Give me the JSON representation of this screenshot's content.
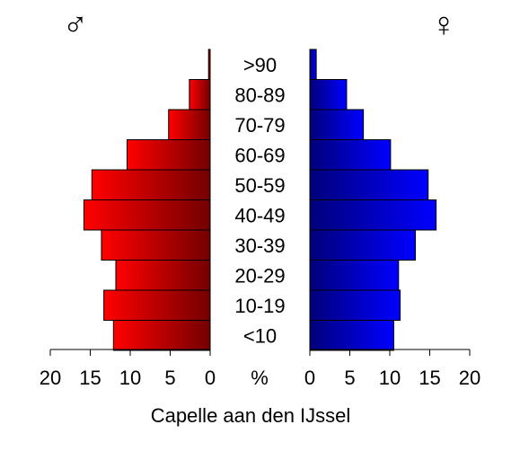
{
  "chart_data": {
    "type": "bar",
    "subtype": "population-pyramid",
    "title": "Capelle aan den IJssel",
    "center_unit_label": "%",
    "male_symbol": "♂",
    "female_symbol": "♀",
    "categories": [
      ">90",
      "80-89",
      "70-79",
      "60-69",
      "50-59",
      "40-49",
      "30-39",
      "20-29",
      "10-19",
      "<10"
    ],
    "series": [
      {
        "side": "male",
        "values": [
          0.2,
          2.6,
          5.2,
          10.4,
          14.8,
          15.8,
          13.6,
          11.8,
          13.3,
          12.1
        ]
      },
      {
        "side": "female",
        "values": [
          0.8,
          4.6,
          6.7,
          10.1,
          14.8,
          15.8,
          13.2,
          11.1,
          11.3,
          10.5
        ]
      }
    ],
    "xlim": [
      0,
      20
    ],
    "ticks": [
      20,
      15,
      10,
      5,
      0
    ],
    "tick_labels": [
      "20",
      "15",
      "10",
      "5",
      "0"
    ],
    "colors": {
      "male_light": "#ff0000",
      "male_dark": "#730000",
      "female_dark": "#00007a",
      "female_light": "#0000ff"
    },
    "grid": false
  }
}
